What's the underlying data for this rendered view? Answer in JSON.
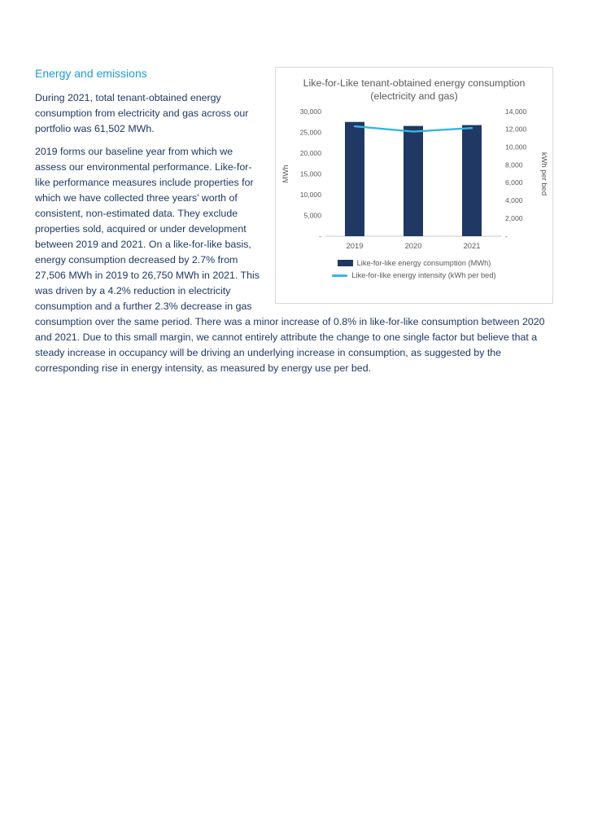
{
  "page": {
    "heading": "Energy and emissions",
    "paragraphs": [
      "During 2021, total tenant-obtained energy consumption from electricity and gas across our portfolio was 61,502 MWh.",
      "2019 forms our baseline year from which we assess our environmental performance. Like-for-like performance measures include properties for which we have collected three years’ worth of consistent, non-estimated data. They exclude properties sold, acquired or under development between 2019 and 2021. On a like-for-like basis, energy consumption decreased by 2.7% from 27,506 MWh in 2019 to 26,750 MWh in 2021. This was driven by a 4.2% reduction in electricity consumption and a further 2.3% decrease in gas consumption over the same period. There was a minor increase of 0.8% in like-for-like consumption between 2020 and 2021. Due to this small margin, we cannot entirely attribute the change to one single factor but believe that a steady increase in occupancy will be driving an underlying increase in consumption, as suggested by the corresponding rise in energy intensity, as measured by energy use per bed."
    ]
  },
  "chart_data": {
    "type": "bar",
    "title": "Like-for-Like tenant-obtained energy consumption (electricity and gas)",
    "categories": [
      "2019",
      "2020",
      "2021"
    ],
    "series": [
      {
        "name": "Like-for-like energy consumption (MWh)",
        "type": "bar",
        "axis": "left",
        "values": [
          27506,
          26538,
          26750
        ],
        "color": "#1F3864"
      },
      {
        "name": "Like-for-like energy intensity (kWh per bed)",
        "type": "line",
        "axis": "right",
        "values": [
          12350,
          11750,
          12150
        ],
        "color": "#36B5E5"
      }
    ],
    "left_axis": {
      "label": "MWh",
      "min": 0,
      "max": 30000,
      "step": 5000,
      "ticks": [
        "30,000",
        "25,000",
        "20,000",
        "15,000",
        "10,000",
        "5,000",
        "-"
      ]
    },
    "right_axis": {
      "label": "kWh per bed",
      "min": 0,
      "max": 14000,
      "step": 2000,
      "ticks": [
        "14,000",
        "12,000",
        "10,000",
        "8,000",
        "6,000",
        "4,000",
        "2,000",
        "-"
      ]
    },
    "legend_position": "bottom",
    "grid": false
  }
}
